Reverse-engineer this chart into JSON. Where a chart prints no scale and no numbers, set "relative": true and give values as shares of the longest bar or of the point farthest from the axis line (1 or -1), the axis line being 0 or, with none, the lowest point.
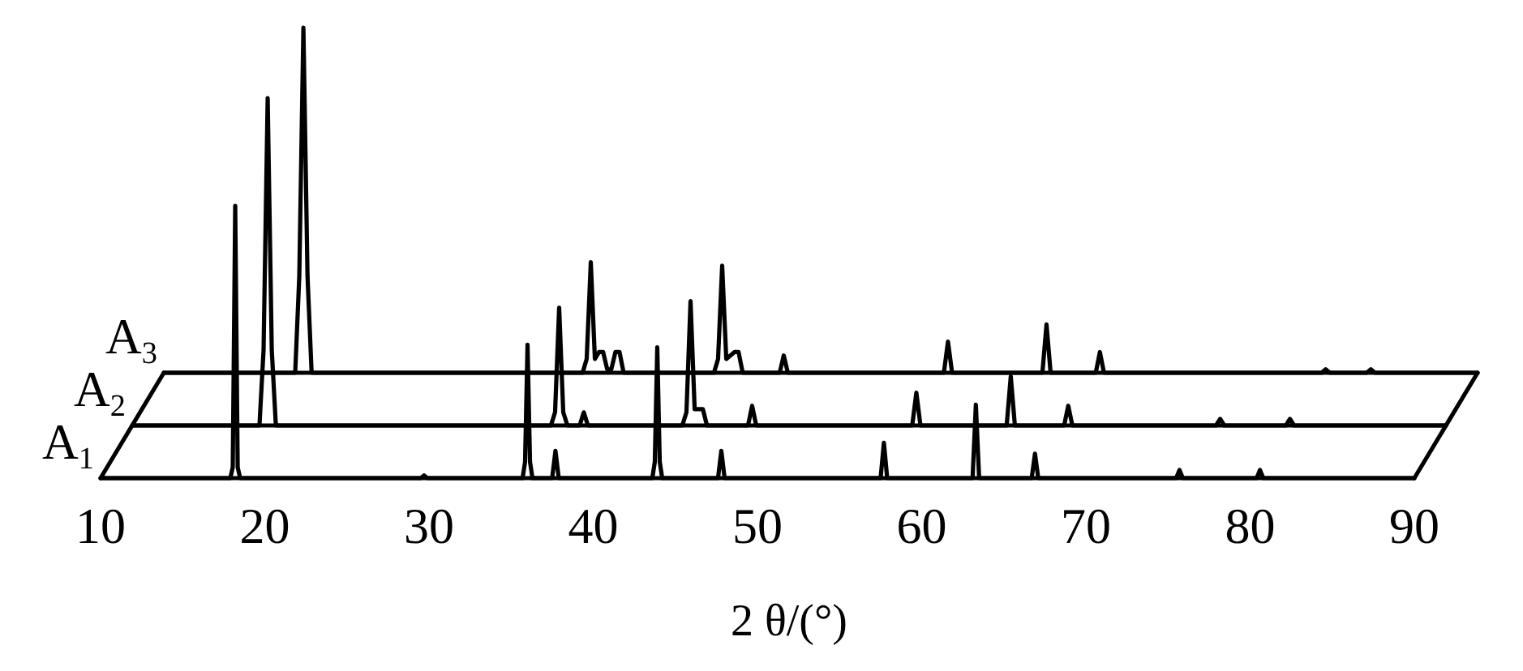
{
  "chart_data": [
    {
      "type": "line",
      "relative": true,
      "categories": [
        null,
        null,
        null,
        null,
        null,
        null,
        null,
        null,
        null,
        null,
        null,
        null,
        null,
        null,
        null,
        null,
        null,
        null,
        null,
        null,
        null,
        null,
        null,
        null,
        null,
        null,
        null,
        null,
        null,
        null,
        null,
        null,
        null,
        null,
        null,
        null,
        null,
        null,
        null,
        null,
        null,
        null,
        null,
        null,
        null,
        null,
        null,
        null,
        null,
        null,
        null,
        null,
        null,
        null,
        null,
        null,
        null,
        null,
        null,
        null,
        null,
        null,
        null,
        null,
        null,
        null,
        null,
        null,
        null,
        null,
        null,
        null,
        null,
        null,
        null,
        null,
        null,
        null,
        null,
        null,
        null,
        null,
        null,
        null,
        null,
        null,
        null,
        null,
        null,
        null,
        null,
        null,
        null,
        null,
        null,
        null,
        null,
        null,
        null,
        null,
        null,
        null,
        null,
        null,
        null,
        null,
        null,
        null,
        null,
        null,
        null,
        null,
        null,
        null,
        null,
        null,
        null,
        null,
        null,
        null,
        null,
        null,
        null,
        null,
        null,
        null,
        null,
        null,
        null,
        null,
        null,
        null,
        null,
        null,
        null,
        null,
        null,
        null,
        null,
        null,
        null,
        null,
        null,
        null,
        null,
        null,
        null,
        null,
        null,
        null,
        null,
        null,
        null,
        null,
        null,
        null,
        null,
        null,
        null,
        null,
        null,
        null,
        null,
        null,
        null,
        null,
        null,
        null,
        null,
        null,
        null,
        null,
        null,
        null,
        null,
        null,
        null,
        null,
        null,
        null,
        null,
        null,
        null,
        null,
        null,
        null,
        null,
        null,
        null,
        null,
        null,
        null,
        null,
        null,
        null,
        null,
        null,
        null,
        null,
        null,
        null,
        null,
        null,
        null,
        null,
        null,
        null,
        null,
        null,
        null,
        null,
        null,
        null,
        null,
        null,
        null,
        null,
        null,
        null,
        null,
        null,
        null,
        null,
        null,
        null,
        null,
        null,
        null,
        null,
        null,
        null,
        null,
        null,
        null,
        null,
        null,
        null,
        null,
        null,
        null,
        null,
        null,
        null,
        null,
        null,
        null,
        null,
        null,
        null,
        null,
        null,
        null,
        null,
        null,
        null,
        null,
        null,
        null,
        null,
        null,
        null,
        null,
        null,
        null,
        null,
        null,
        null,
        null,
        null,
        null,
        null,
        null,
        null,
        null,
        null,
        null,
        null,
        null,
        null,
        null,
        null,
        null,
        null,
        null,
        null,
        null,
        null,
        null,
        null,
        null,
        null,
        null,
        null,
        null,
        null,
        null,
        null,
        null,
        null,
        null,
        null,
        null,
        null,
        null,
        null,
        null,
        null,
        null,
        null,
        null,
        null,
        null,
        null,
        null,
        null,
        null,
        null,
        null,
        null,
        null,
        null
      ],
      "series": [
        {
          "name": "A$_{3}$",
          "color": "#000000",
          "values": [
            0,
            0,
            0,
            0,
            0,
            0,
            0,
            0,
            0,
            0,
            0,
            0,
            0,
            0,
            0,
            0,
            0,
            0,
            0,
            0,
            0,
            0,
            0,
            0,
            0,
            0,
            0,
            0,
            0,
            0,
            0,
            0,
            0,
            0.28,
            1.0,
            0.28,
            0,
            0,
            0,
            0,
            0,
            0,
            0,
            0,
            0,
            0,
            0,
            0,
            0,
            0,
            0,
            0,
            0,
            0,
            0,
            0,
            0,
            0,
            0,
            0,
            0,
            0,
            0,
            0,
            0,
            0,
            0,
            0,
            0,
            0,
            0,
            0,
            0,
            0,
            0,
            0,
            0,
            0,
            0,
            0,
            0,
            0,
            0,
            0,
            0,
            0,
            0,
            0,
            0,
            0,
            0,
            0,
            0,
            0,
            0,
            0,
            0,
            0,
            0,
            0,
            0,
            0,
            0,
            0.04,
            0.32,
            0.04,
            0.06,
            0.06,
            0.01,
            0.01,
            0.06,
            0.06,
            0,
            0,
            0,
            0,
            0,
            0,
            0,
            0,
            0,
            0,
            0,
            0,
            0,
            0,
            0,
            0,
            0,
            0,
            0,
            0,
            0,
            0,
            0,
            0.04,
            0.31,
            0.04,
            0.05,
            0.06,
            0.06,
            0,
            0,
            0,
            0,
            0,
            0,
            0,
            0,
            0,
            0,
            0.05,
            0,
            0,
            0,
            0,
            0,
            0,
            0,
            0,
            0,
            0,
            0,
            0,
            0,
            0,
            0,
            0,
            0,
            0,
            0,
            0,
            0,
            0,
            0,
            0,
            0,
            0,
            0,
            0,
            0,
            0,
            0,
            0,
            0,
            0,
            0,
            0,
            0,
            0,
            0,
            0.09,
            0,
            0,
            0,
            0,
            0,
            0,
            0,
            0,
            0,
            0,
            0,
            0,
            0,
            0,
            0,
            0,
            0,
            0,
            0,
            0,
            0,
            0,
            0,
            0.14,
            0,
            0,
            0,
            0,
            0,
            0,
            0,
            0,
            0,
            0,
            0,
            0,
            0.06,
            0,
            0,
            0,
            0,
            0,
            0,
            0,
            0,
            0,
            0,
            0,
            0,
            0,
            0,
            0,
            0,
            0,
            0,
            0,
            0,
            0,
            0,
            0,
            0,
            0,
            0,
            0,
            0,
            0,
            0,
            0,
            0,
            0,
            0,
            0,
            0,
            0,
            0,
            0,
            0,
            0,
            0,
            0,
            0,
            0,
            0,
            0,
            0,
            0,
            0,
            0,
            0,
            0,
            0,
            0.01,
            0,
            0,
            0,
            0,
            0,
            0,
            0,
            0,
            0,
            0,
            0.01,
            0,
            0,
            0,
            0,
            0,
            0,
            0,
            0,
            0,
            0,
            0,
            0,
            0,
            0,
            0,
            0,
            0,
            0,
            0,
            0,
            0,
            0,
            0,
            0,
            0,
            0
          ]
        }
      ]
    },
    {
      "type": "line",
      "relative": true,
      "categories": [
        null,
        null,
        null,
        null,
        null,
        null,
        null,
        null,
        null,
        null,
        null,
        null,
        null,
        null,
        null,
        null,
        null,
        null,
        null,
        null,
        null,
        null,
        null,
        null,
        null,
        null,
        null,
        null,
        null,
        null,
        null,
        null,
        null,
        null,
        null,
        null,
        null,
        null,
        null,
        null,
        null,
        null,
        null,
        null,
        null,
        null,
        null,
        null,
        null,
        null,
        null,
        null,
        null,
        null,
        null,
        null,
        null,
        null,
        null,
        null,
        null,
        null,
        null,
        null,
        null,
        null,
        null,
        null,
        null,
        null,
        null,
        null,
        null,
        null,
        null,
        null,
        null,
        null,
        null,
        null,
        null,
        null,
        null,
        null,
        null,
        null,
        null,
        null,
        null,
        null,
        null,
        null,
        null,
        null,
        null,
        null,
        null,
        null,
        null,
        null,
        null,
        null,
        null,
        null,
        null,
        null,
        null,
        null,
        null,
        null,
        null,
        null,
        null,
        null,
        null,
        null,
        null,
        null,
        null,
        null,
        null,
        null,
        null,
        null,
        null,
        null,
        null,
        null,
        null,
        null,
        null,
        null,
        null,
        null,
        null,
        null,
        null,
        null,
        null,
        null,
        null,
        null,
        null,
        null,
        null,
        null,
        null,
        null,
        null,
        null,
        null,
        null,
        null,
        null,
        null,
        null,
        null,
        null,
        null,
        null,
        null,
        null,
        null,
        null,
        null,
        null,
        null,
        null,
        null,
        null,
        null,
        null,
        null,
        null,
        null,
        null,
        null,
        null,
        null,
        null,
        null,
        null,
        null,
        null,
        null,
        null,
        null,
        null,
        null,
        null,
        null,
        null,
        null,
        null,
        null,
        null,
        null,
        null,
        null,
        null,
        null,
        null,
        null,
        null,
        null,
        null,
        null,
        null,
        null,
        null,
        null,
        null,
        null,
        null,
        null,
        null,
        null,
        null,
        null,
        null,
        null,
        null,
        null,
        null,
        null,
        null,
        null,
        null,
        null,
        null,
        null,
        null,
        null,
        null,
        null,
        null,
        null,
        null,
        null,
        null,
        null,
        null,
        null,
        null,
        null,
        null,
        null,
        null,
        null,
        null,
        null,
        null,
        null,
        null,
        null,
        null,
        null,
        null,
        null,
        null,
        null,
        null,
        null,
        null,
        null,
        null,
        null,
        null,
        null,
        null,
        null,
        null,
        null,
        null,
        null,
        null,
        null,
        null,
        null,
        null,
        null,
        null,
        null,
        null,
        null,
        null,
        null,
        null,
        null,
        null,
        null,
        null,
        null,
        null,
        null,
        null,
        null,
        null,
        null,
        null,
        null,
        null,
        null,
        null,
        null,
        null,
        null,
        null,
        null,
        null,
        null,
        null,
        null,
        null,
        null,
        null,
        null,
        null,
        null,
        null,
        null
      ],
      "series": [
        {
          "name": "A$_{2}$",
          "color": "#000000",
          "values": [
            0,
            0,
            0,
            0,
            0,
            0,
            0,
            0,
            0,
            0,
            0,
            0,
            0,
            0,
            0,
            0,
            0,
            0,
            0,
            0,
            0,
            0,
            0,
            0,
            0,
            0,
            0,
            0,
            0,
            0,
            0,
            0,
            0.23,
            1.0,
            0.23,
            0,
            0,
            0,
            0,
            0,
            0,
            0,
            0,
            0,
            0,
            0,
            0,
            0,
            0,
            0,
            0,
            0,
            0,
            0,
            0,
            0,
            0,
            0,
            0,
            0,
            0,
            0,
            0,
            0,
            0,
            0,
            0,
            0,
            0,
            0,
            0,
            0,
            0,
            0,
            0,
            0,
            0,
            0,
            0,
            0,
            0,
            0,
            0,
            0,
            0,
            0,
            0,
            0,
            0,
            0,
            0,
            0,
            0,
            0,
            0,
            0,
            0,
            0,
            0,
            0,
            0,
            0,
            0,
            0.04,
            0.36,
            0.04,
            0,
            0,
            0,
            0,
            0.04,
            0,
            0,
            0,
            0,
            0,
            0,
            0,
            0,
            0,
            0,
            0,
            0,
            0,
            0,
            0,
            0,
            0,
            0,
            0,
            0,
            0,
            0,
            0,
            0,
            0.04,
            0.38,
            0.05,
            0.05,
            0.05,
            0,
            0,
            0,
            0,
            0,
            0,
            0,
            0,
            0,
            0,
            0,
            0.06,
            0,
            0,
            0,
            0,
            0,
            0,
            0,
            0,
            0,
            0,
            0,
            0,
            0,
            0,
            0,
            0,
            0,
            0,
            0,
            0,
            0,
            0,
            0,
            0,
            0,
            0,
            0,
            0,
            0,
            0,
            0,
            0,
            0,
            0,
            0,
            0,
            0,
            0,
            0,
            0.1,
            0,
            0,
            0,
            0,
            0,
            0,
            0,
            0,
            0,
            0,
            0,
            0,
            0,
            0,
            0,
            0,
            0,
            0,
            0,
            0,
            0,
            0,
            0.15,
            0,
            0,
            0,
            0,
            0,
            0,
            0,
            0,
            0,
            0,
            0,
            0,
            0,
            0.06,
            0,
            0,
            0,
            0,
            0,
            0,
            0,
            0,
            0,
            0,
            0,
            0,
            0,
            0,
            0,
            0,
            0,
            0,
            0,
            0,
            0,
            0,
            0,
            0,
            0,
            0,
            0,
            0,
            0,
            0,
            0,
            0,
            0,
            0,
            0,
            0,
            0.02,
            0,
            0,
            0,
            0,
            0,
            0,
            0,
            0,
            0,
            0,
            0,
            0,
            0,
            0,
            0,
            0,
            0.02,
            0,
            0,
            0,
            0,
            0,
            0,
            0,
            0,
            0,
            0,
            0,
            0,
            0,
            0,
            0,
            0,
            0,
            0,
            0,
            0,
            0,
            0,
            0,
            0,
            0,
            0,
            0,
            0,
            0,
            0,
            0,
            0,
            0,
            0,
            0,
            0,
            0,
            0
          ]
        }
      ]
    },
    {
      "type": "line",
      "relative": true,
      "xlim": [
        10,
        90
      ],
      "xticks": [
        10,
        20,
        30,
        40,
        50,
        60,
        70,
        80,
        90
      ],
      "xlabel": "2 θ/(°)",
      "series": [
        {
          "name": "A$_{1}$",
          "color": "#000000",
          "x": [
            10,
            17.9,
            18.05,
            18.2,
            18.35,
            18.5,
            29.5,
            29.7,
            29.9,
            35.7,
            35.85,
            36.0,
            36.15,
            36.3,
            37.5,
            37.7,
            37.9,
            43.6,
            43.75,
            43.9,
            44.05,
            44.2,
            47.6,
            47.8,
            48.0,
            57.5,
            57.7,
            57.9,
            63.1,
            63.3,
            63.5,
            66.7,
            66.9,
            67.1,
            75.5,
            75.7,
            75.9,
            80.4,
            80.6,
            80.8,
            90
          ],
          "values": [
            0,
            0,
            0.04,
            1.0,
            0.04,
            0,
            0,
            0.01,
            0,
            0,
            0.06,
            0.49,
            0.06,
            0,
            0,
            0.1,
            0,
            0,
            0.06,
            0.48,
            0.06,
            0,
            0,
            0.1,
            0,
            0,
            0.13,
            0,
            0,
            0.27,
            0,
            0,
            0.09,
            0,
            0,
            0.03,
            0,
            0,
            0.03,
            0,
            0
          ]
        }
      ]
    }
  ]
}
